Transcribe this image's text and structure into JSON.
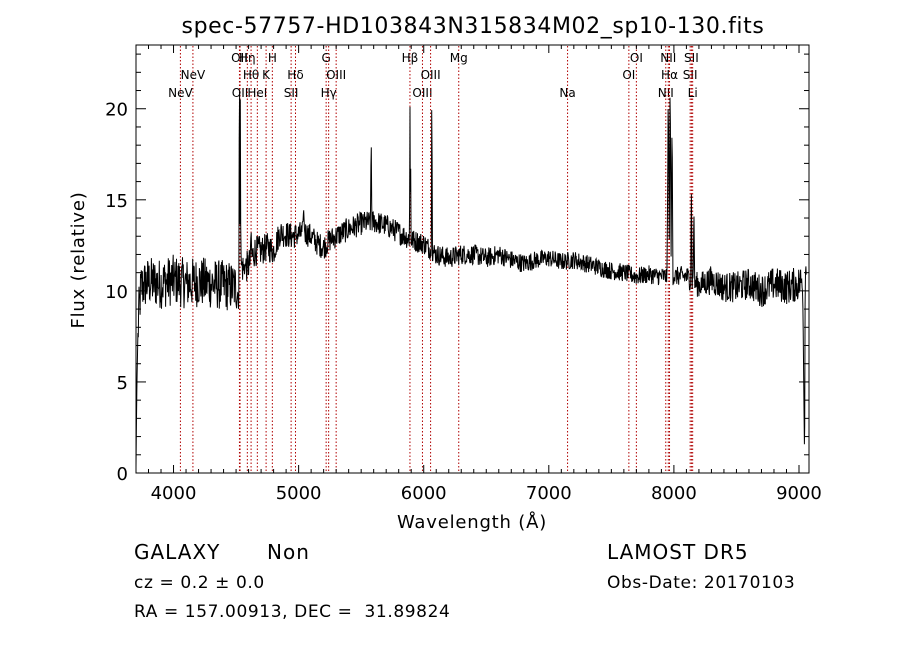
{
  "chart_data": {
    "type": "line",
    "title": "spec-57757-HD103843N315834M02_sp10-130.fits",
    "xlabel": "Wavelength (Å)",
    "ylabel": "Flux (relative)",
    "xlim": [
      3700,
      9080
    ],
    "ylim": [
      0,
      23.5
    ],
    "xticks": [
      4000,
      5000,
      6000,
      7000,
      8000,
      9000
    ],
    "yticks": [
      0,
      5,
      10,
      15,
      20
    ],
    "grid": false,
    "series": [
      {
        "color": "#000000",
        "anchors": [
          [
            3700,
            0.3
          ],
          [
            3705,
            4
          ],
          [
            3712,
            6.5
          ],
          [
            3720,
            8.5
          ],
          [
            3740,
            10.2
          ],
          [
            3800,
            10.5
          ],
          [
            3900,
            10.4
          ],
          [
            4000,
            10.6
          ],
          [
            4100,
            10.4
          ],
          [
            4200,
            10.5
          ],
          [
            4300,
            10.4
          ],
          [
            4400,
            10.3
          ],
          [
            4500,
            10.2
          ],
          [
            4520,
            9.8
          ],
          [
            4535,
            11.5
          ],
          [
            4560,
            11.2
          ],
          [
            4600,
            11.4
          ],
          [
            4650,
            12.2
          ],
          [
            4700,
            12.2
          ],
          [
            4750,
            12.4
          ],
          [
            4800,
            12.2
          ],
          [
            4850,
            13.2
          ],
          [
            4900,
            13.1
          ],
          [
            4950,
            13.0
          ],
          [
            5000,
            13.1
          ],
          [
            5050,
            13.2
          ],
          [
            5100,
            13.0
          ],
          [
            5150,
            12.6
          ],
          [
            5200,
            12.4
          ],
          [
            5250,
            12.8
          ],
          [
            5300,
            13.0
          ],
          [
            5400,
            13.4
          ],
          [
            5500,
            13.7
          ],
          [
            5600,
            13.8
          ],
          [
            5700,
            13.6
          ],
          [
            5800,
            13.2
          ],
          [
            5900,
            12.8
          ],
          [
            6000,
            12.6
          ],
          [
            6100,
            12.0
          ],
          [
            6200,
            11.8
          ],
          [
            6300,
            12.0
          ],
          [
            6400,
            12.0
          ],
          [
            6500,
            11.8
          ],
          [
            6600,
            12.0
          ],
          [
            6700,
            11.7
          ],
          [
            6800,
            11.5
          ],
          [
            6900,
            11.7
          ],
          [
            7000,
            11.8
          ],
          [
            7100,
            11.6
          ],
          [
            7200,
            11.7
          ],
          [
            7300,
            11.5
          ],
          [
            7400,
            11.3
          ],
          [
            7500,
            11.1
          ],
          [
            7600,
            11.0
          ],
          [
            7700,
            10.8
          ],
          [
            7800,
            10.9
          ],
          [
            7880,
            10.8
          ],
          [
            7920,
            10.8
          ],
          [
            8000,
            10.8
          ],
          [
            8100,
            10.8
          ],
          [
            8200,
            10.3
          ],
          [
            8300,
            10.6
          ],
          [
            8400,
            10.2
          ],
          [
            8500,
            10.2
          ],
          [
            8600,
            10.4
          ],
          [
            8700,
            10.0
          ],
          [
            8800,
            10.4
          ],
          [
            8900,
            10.2
          ],
          [
            9000,
            10.4
          ],
          [
            9030,
            10.6
          ],
          [
            9040,
            3.5
          ],
          [
            9045,
            0.3
          ],
          [
            9050,
            11.5
          ],
          [
            9060,
            11.8
          ]
        ],
        "lines": [
          [
            4527,
            23.5,
            5
          ],
          [
            4534,
            20.5,
            4
          ],
          [
            4575,
            11.0,
            6
          ],
          [
            4620,
            13.5,
            6
          ],
          [
            5040,
            14.6,
            8
          ],
          [
            5580,
            18.9,
            5
          ],
          [
            5890,
            20.1,
            4
          ],
          [
            5895,
            18.0,
            4
          ],
          [
            6065,
            22.5,
            4
          ],
          [
            7955,
            21.0,
            10
          ],
          [
            7970,
            22.0,
            8
          ],
          [
            7985,
            19.5,
            8
          ],
          [
            8140,
            15.3,
            6
          ],
          [
            8160,
            14.8,
            6
          ]
        ],
        "noise_profile": [
          [
            3700,
            1.4
          ],
          [
            4500,
            1.4
          ],
          [
            4520,
            0.9
          ],
          [
            5000,
            0.7
          ],
          [
            6000,
            0.6
          ],
          [
            7000,
            0.5
          ],
          [
            8000,
            0.5
          ],
          [
            8300,
            0.8
          ],
          [
            9060,
            1.0
          ]
        ]
      }
    ],
    "line_markers": [
      {
        "wavelength": 4055,
        "label": "NeV",
        "row": 3
      },
      {
        "wavelength": 4155,
        "label": "NeV",
        "row": 2
      },
      {
        "wavelength": 4527,
        "label": "OII",
        "row": 1
      },
      {
        "wavelength": 4532,
        "label": "OII",
        "row": 3
      },
      {
        "wavelength": 4590,
        "label": "Hη",
        "row": 1
      },
      {
        "wavelength": 4620,
        "label": "Hθ",
        "row": 2
      },
      {
        "wavelength": 4670,
        "label": "HeI",
        "row": 3
      },
      {
        "wavelength": 4740,
        "label": "K",
        "row": 2
      },
      {
        "wavelength": 4790,
        "label": "H",
        "row": 1
      },
      {
        "wavelength": 4940,
        "label": "SII",
        "row": 3
      },
      {
        "wavelength": 4975,
        "label": "Hδ",
        "row": 2
      },
      {
        "wavelength": 5220,
        "label": "G",
        "row": 1
      },
      {
        "wavelength": 5240,
        "label": "Hγ",
        "row": 3
      },
      {
        "wavelength": 5300,
        "label": "OIII",
        "row": 2
      },
      {
        "wavelength": 5890,
        "label": "Hβ",
        "row": 1
      },
      {
        "wavelength": 5990,
        "label": "OIII",
        "row": 3
      },
      {
        "wavelength": 6055,
        "label": "OIII",
        "row": 2
      },
      {
        "wavelength": 6280,
        "label": "Mg",
        "row": 1
      },
      {
        "wavelength": 7150,
        "label": "Na",
        "row": 3
      },
      {
        "wavelength": 7640,
        "label": "OI",
        "row": 2
      },
      {
        "wavelength": 7700,
        "label": "OI",
        "row": 1
      },
      {
        "wavelength": 7935,
        "label": "NII",
        "row": 3
      },
      {
        "wavelength": 7955,
        "label": "NII",
        "row": 1
      },
      {
        "wavelength": 7965,
        "label": "Hα",
        "row": 2
      },
      {
        "wavelength": 8130,
        "label": "SII",
        "row": 2
      },
      {
        "wavelength": 8140,
        "label": "SII",
        "row": 1
      },
      {
        "wavelength": 8150,
        "label": "Li",
        "row": 3
      }
    ]
  },
  "info": {
    "class": "GALAXY",
    "subclass": "Non",
    "redshift": "cz = 0.2 ± 0.0",
    "coords": "RA = 157.00913, DEC =  31.89824",
    "survey": "LAMOST DR5",
    "obs_date": "Obs-Date: 20170103"
  },
  "colors": {
    "marker": "#b00000",
    "spectrum": "#000000"
  }
}
